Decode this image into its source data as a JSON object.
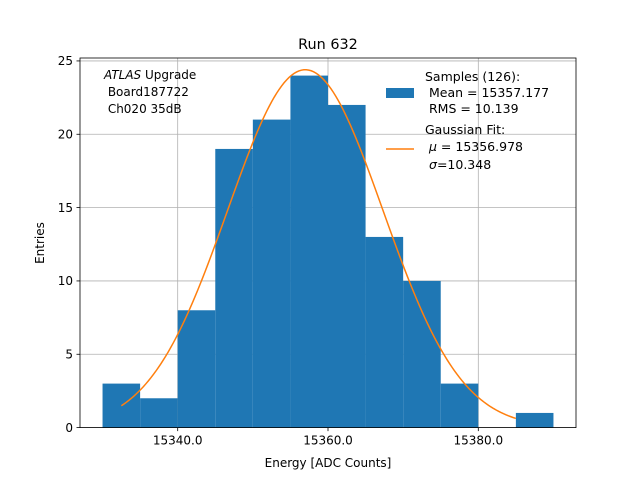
{
  "chart_data": {
    "type": "bar",
    "title": "Run 632",
    "xlabel": "Energy [ADC Counts]",
    "ylabel": "Entries",
    "xlim": [
      15327,
      15393
    ],
    "ylim": [
      0,
      25.2
    ],
    "xticks": [
      15340,
      15360,
      15380
    ],
    "xtick_labels": [
      "15340.0",
      "15360.0",
      "15380.0"
    ],
    "yticks": [
      0,
      5,
      10,
      15,
      20,
      25
    ],
    "ytick_labels": [
      "0",
      "5",
      "10",
      "15",
      "20",
      "25"
    ],
    "grid": true,
    "bins": [
      {
        "x0": 15330,
        "x1": 15335,
        "count": 3
      },
      {
        "x0": 15335,
        "x1": 15340,
        "count": 2
      },
      {
        "x0": 15340,
        "x1": 15345,
        "count": 8
      },
      {
        "x0": 15345,
        "x1": 15350,
        "count": 19
      },
      {
        "x0": 15350,
        "x1": 15355,
        "count": 21
      },
      {
        "x0": 15355,
        "x1": 15360,
        "count": 24
      },
      {
        "x0": 15360,
        "x1": 15365,
        "count": 22
      },
      {
        "x0": 15365,
        "x1": 15370,
        "count": 13
      },
      {
        "x0": 15370,
        "x1": 15375,
        "count": 10
      },
      {
        "x0": 15375,
        "x1": 15380,
        "count": 3
      },
      {
        "x0": 15380,
        "x1": 15385,
        "count": 0
      },
      {
        "x0": 15385,
        "x1": 15390,
        "count": 1
      }
    ],
    "fit": {
      "mu": 15356.978,
      "sigma": 10.348,
      "amplitude": 24.4,
      "x_range": [
        15332.5,
        15385
      ]
    },
    "colors": {
      "hist": "#1f77b4",
      "fit": "#ff7f0e"
    },
    "annotation": {
      "line1_italic": "ATLAS",
      "line1_rest": " Upgrade",
      "line2": " Board187722",
      "line3": " Ch020 35dB"
    },
    "legend": {
      "placement": "top-right",
      "hist_line1": "Samples (126):",
      "hist_line2": " Mean = 15357.177",
      "hist_line3": " RMS = 10.139",
      "fit_line1": "Gaussian Fit:",
      "fit_mu_symbol": "μ",
      "fit_mu_value": " = 15356.978",
      "fit_sigma_symbol": "σ",
      "fit_sigma_value": "=10.348"
    }
  }
}
